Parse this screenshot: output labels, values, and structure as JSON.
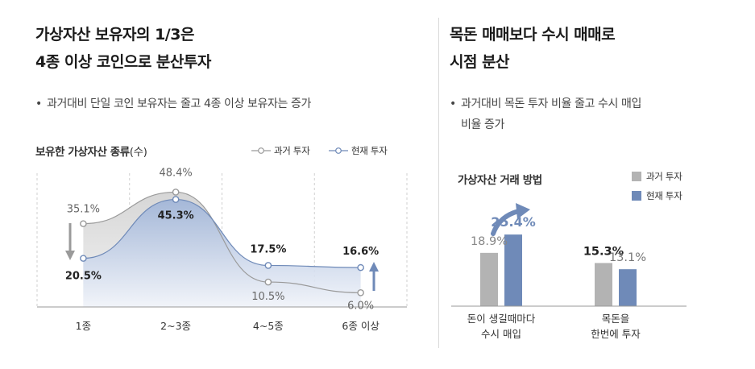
{
  "left": {
    "headline_line1": "가상자산 보유자의 1/3은",
    "headline_line2": "4종 이상 코인으로 분산투자",
    "bullet": "과거대비 단일 코인 보유자는 줄고 4종 이상 보유자는 증가"
  },
  "right": {
    "headline_line1": "목돈 매매보다 수시 매매로",
    "headline_line2": "시점 분산",
    "bullet_line1": "과거대비 목돈 투자 비율 줄고 수시 매입",
    "bullet_line2": "비율 증가"
  },
  "bullet_mark": "•",
  "chart_data": [
    {
      "type": "line",
      "title": "보유한 가상자산 종류",
      "title_unit": "(수)",
      "categories": [
        "1종",
        "2~3종",
        "4~5종",
        "6종 이상"
      ],
      "series": [
        {
          "name": "과거 투자",
          "values": [
            35.1,
            48.4,
            10.5,
            6.0
          ],
          "labels": [
            "35.1%",
            "48.4%",
            "10.5%",
            "6.0%"
          ],
          "color": "#9a9a9a"
        },
        {
          "name": "현재 투자",
          "values": [
            20.5,
            45.3,
            17.5,
            16.6
          ],
          "labels": [
            "20.5%",
            "45.3%",
            "17.5%",
            "16.6%"
          ],
          "color": "#6f8ab8"
        }
      ],
      "ylim": [
        0,
        55
      ],
      "grid": "vertical-dashed",
      "legend": "top-right"
    },
    {
      "type": "bar",
      "title": "가상자산 거래 방법",
      "categories": [
        [
          "돈이 생길때마다",
          "수시 매입"
        ],
        [
          "목돈을",
          "한번에 투자"
        ]
      ],
      "series": [
        {
          "name": "과거 투자",
          "values": [
            18.9,
            15.3
          ],
          "labels": [
            "18.9%",
            "15.3%"
          ],
          "color": "#b3b3b3"
        },
        {
          "name": "현재 투자",
          "values": [
            25.4,
            13.1
          ],
          "labels": [
            "25.4%",
            "13.1%"
          ],
          "color": "#6f8ab8"
        }
      ],
      "ylim": [
        0,
        32
      ],
      "legend": "top-right"
    }
  ],
  "colors": {
    "past": "#9a9a9a",
    "current": "#6f8ab8",
    "accent_arrow": "#6f8ab8",
    "down_arrow": "#9a9a9a"
  }
}
